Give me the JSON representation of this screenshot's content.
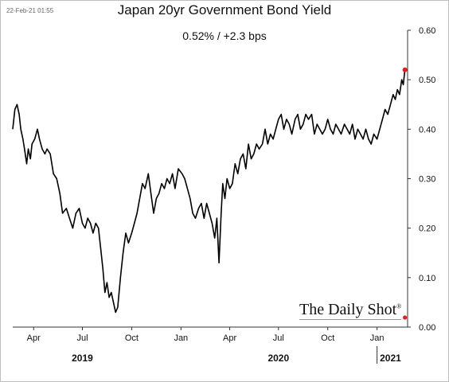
{
  "timestamp": "22-Feb-21 01:55",
  "brand": "The Daily Shot",
  "brand_mark": "®",
  "chart_data": {
    "type": "line",
    "title": "Japan 20yr Government Bond Yield",
    "subtitle": "0.52%  /  +2.3 bps",
    "ylim": [
      0,
      0.6
    ],
    "y_ticks": [
      "0.00",
      "0.10",
      "0.20",
      "0.30",
      "0.40",
      "0.50",
      "0.60"
    ],
    "y_axis_position": "right",
    "grid": false,
    "x_ticks": [
      {
        "date": "2019-04-01",
        "label": "Apr"
      },
      {
        "date": "2019-07-01",
        "label": "Jul"
      },
      {
        "date": "2019-10-01",
        "label": "Oct"
      },
      {
        "date": "2020-01-01",
        "label": "Jan"
      },
      {
        "date": "2020-04-01",
        "label": "Apr"
      },
      {
        "date": "2020-07-01",
        "label": "Jul"
      },
      {
        "date": "2020-10-01",
        "label": "Oct"
      },
      {
        "date": "2021-01-01",
        "label": "Jan"
      }
    ],
    "years": [
      {
        "label": "2019",
        "center": "2019-07-01"
      },
      {
        "label": "2020",
        "center": "2020-07-01"
      },
      {
        "label": "2021",
        "center": "2021-01-26"
      }
    ],
    "line_color": "#000000",
    "marker_color": "#e02020",
    "last_value": 0.52,
    "series": [
      {
        "x": [
          "2019-02-21",
          "2019-02-25",
          "2019-03-01",
          "2019-03-05",
          "2019-03-08",
          "2019-03-12",
          "2019-03-15",
          "2019-03-19",
          "2019-03-22",
          "2019-03-26",
          "2019-03-29",
          "2019-04-03",
          "2019-04-08",
          "2019-04-12",
          "2019-04-17",
          "2019-04-22",
          "2019-04-26",
          "2019-05-02",
          "2019-05-08",
          "2019-05-14",
          "2019-05-20",
          "2019-05-25",
          "2019-06-01",
          "2019-06-07",
          "2019-06-13",
          "2019-06-19",
          "2019-06-25",
          "2019-07-01",
          "2019-07-06",
          "2019-07-11",
          "2019-07-16",
          "2019-07-21",
          "2019-07-26",
          "2019-07-31",
          "2019-08-04",
          "2019-08-08",
          "2019-08-12",
          "2019-08-16",
          "2019-08-20",
          "2019-08-24",
          "2019-08-28",
          "2019-09-01",
          "2019-09-05",
          "2019-09-10",
          "2019-09-15",
          "2019-09-20",
          "2019-09-25",
          "2019-10-01",
          "2019-10-06",
          "2019-10-11",
          "2019-10-16",
          "2019-10-21",
          "2019-10-26",
          "2019-11-01",
          "2019-11-06",
          "2019-11-11",
          "2019-11-16",
          "2019-11-21",
          "2019-11-26",
          "2019-12-01",
          "2019-12-06",
          "2019-12-11",
          "2019-12-16",
          "2019-12-21",
          "2019-12-27",
          "2020-01-03",
          "2020-01-08",
          "2020-01-13",
          "2020-01-18",
          "2020-01-23",
          "2020-01-28",
          "2020-02-03",
          "2020-02-08",
          "2020-02-13",
          "2020-02-18",
          "2020-02-23",
          "2020-02-28",
          "2020-03-04",
          "2020-03-08",
          "2020-03-12",
          "2020-03-16",
          "2020-03-19",
          "2020-03-23",
          "2020-03-27",
          "2020-04-01",
          "2020-04-06",
          "2020-04-11",
          "2020-04-16",
          "2020-04-21",
          "2020-04-26",
          "2020-05-01",
          "2020-05-06",
          "2020-05-11",
          "2020-05-16",
          "2020-05-21",
          "2020-05-26",
          "2020-06-01",
          "2020-06-06",
          "2020-06-11",
          "2020-06-16",
          "2020-06-21",
          "2020-06-26",
          "2020-07-01",
          "2020-07-06",
          "2020-07-11",
          "2020-07-16",
          "2020-07-21",
          "2020-07-26",
          "2020-08-01",
          "2020-08-06",
          "2020-08-11",
          "2020-08-16",
          "2020-08-21",
          "2020-08-26",
          "2020-09-01",
          "2020-09-06",
          "2020-09-11",
          "2020-09-16",
          "2020-09-21",
          "2020-09-26",
          "2020-10-01",
          "2020-10-06",
          "2020-10-11",
          "2020-10-16",
          "2020-10-21",
          "2020-10-26",
          "2020-11-01",
          "2020-11-06",
          "2020-11-11",
          "2020-11-16",
          "2020-11-21",
          "2020-11-26",
          "2020-12-01",
          "2020-12-06",
          "2020-12-11",
          "2020-12-16",
          "2020-12-21",
          "2020-12-26",
          "2021-01-01",
          "2021-01-06",
          "2021-01-11",
          "2021-01-16",
          "2021-01-21",
          "2021-01-26",
          "2021-01-31",
          "2021-02-04",
          "2021-02-08",
          "2021-02-12",
          "2021-02-16",
          "2021-02-19",
          "2021-02-22"
        ],
        "values": [
          0.4,
          0.44,
          0.45,
          0.43,
          0.4,
          0.38,
          0.36,
          0.33,
          0.36,
          0.34,
          0.37,
          0.38,
          0.4,
          0.38,
          0.36,
          0.35,
          0.36,
          0.35,
          0.31,
          0.3,
          0.27,
          0.23,
          0.24,
          0.22,
          0.2,
          0.23,
          0.24,
          0.21,
          0.2,
          0.22,
          0.21,
          0.19,
          0.21,
          0.2,
          0.16,
          0.12,
          0.07,
          0.09,
          0.06,
          0.07,
          0.05,
          0.03,
          0.04,
          0.1,
          0.15,
          0.19,
          0.17,
          0.19,
          0.21,
          0.23,
          0.26,
          0.29,
          0.28,
          0.31,
          0.27,
          0.23,
          0.26,
          0.27,
          0.29,
          0.28,
          0.3,
          0.29,
          0.31,
          0.28,
          0.32,
          0.31,
          0.3,
          0.28,
          0.26,
          0.23,
          0.22,
          0.24,
          0.25,
          0.22,
          0.25,
          0.23,
          0.21,
          0.18,
          0.22,
          0.13,
          0.23,
          0.29,
          0.26,
          0.3,
          0.28,
          0.29,
          0.33,
          0.31,
          0.34,
          0.35,
          0.32,
          0.37,
          0.34,
          0.35,
          0.37,
          0.36,
          0.37,
          0.4,
          0.37,
          0.39,
          0.38,
          0.4,
          0.42,
          0.43,
          0.4,
          0.42,
          0.41,
          0.39,
          0.42,
          0.43,
          0.4,
          0.41,
          0.43,
          0.42,
          0.43,
          0.39,
          0.41,
          0.4,
          0.39,
          0.4,
          0.42,
          0.4,
          0.39,
          0.41,
          0.4,
          0.39,
          0.41,
          0.4,
          0.39,
          0.41,
          0.38,
          0.4,
          0.39,
          0.38,
          0.4,
          0.38,
          0.37,
          0.39,
          0.38,
          0.4,
          0.42,
          0.44,
          0.43,
          0.45,
          0.47,
          0.46,
          0.48,
          0.47,
          0.5,
          0.49,
          0.52
        ]
      }
    ]
  }
}
